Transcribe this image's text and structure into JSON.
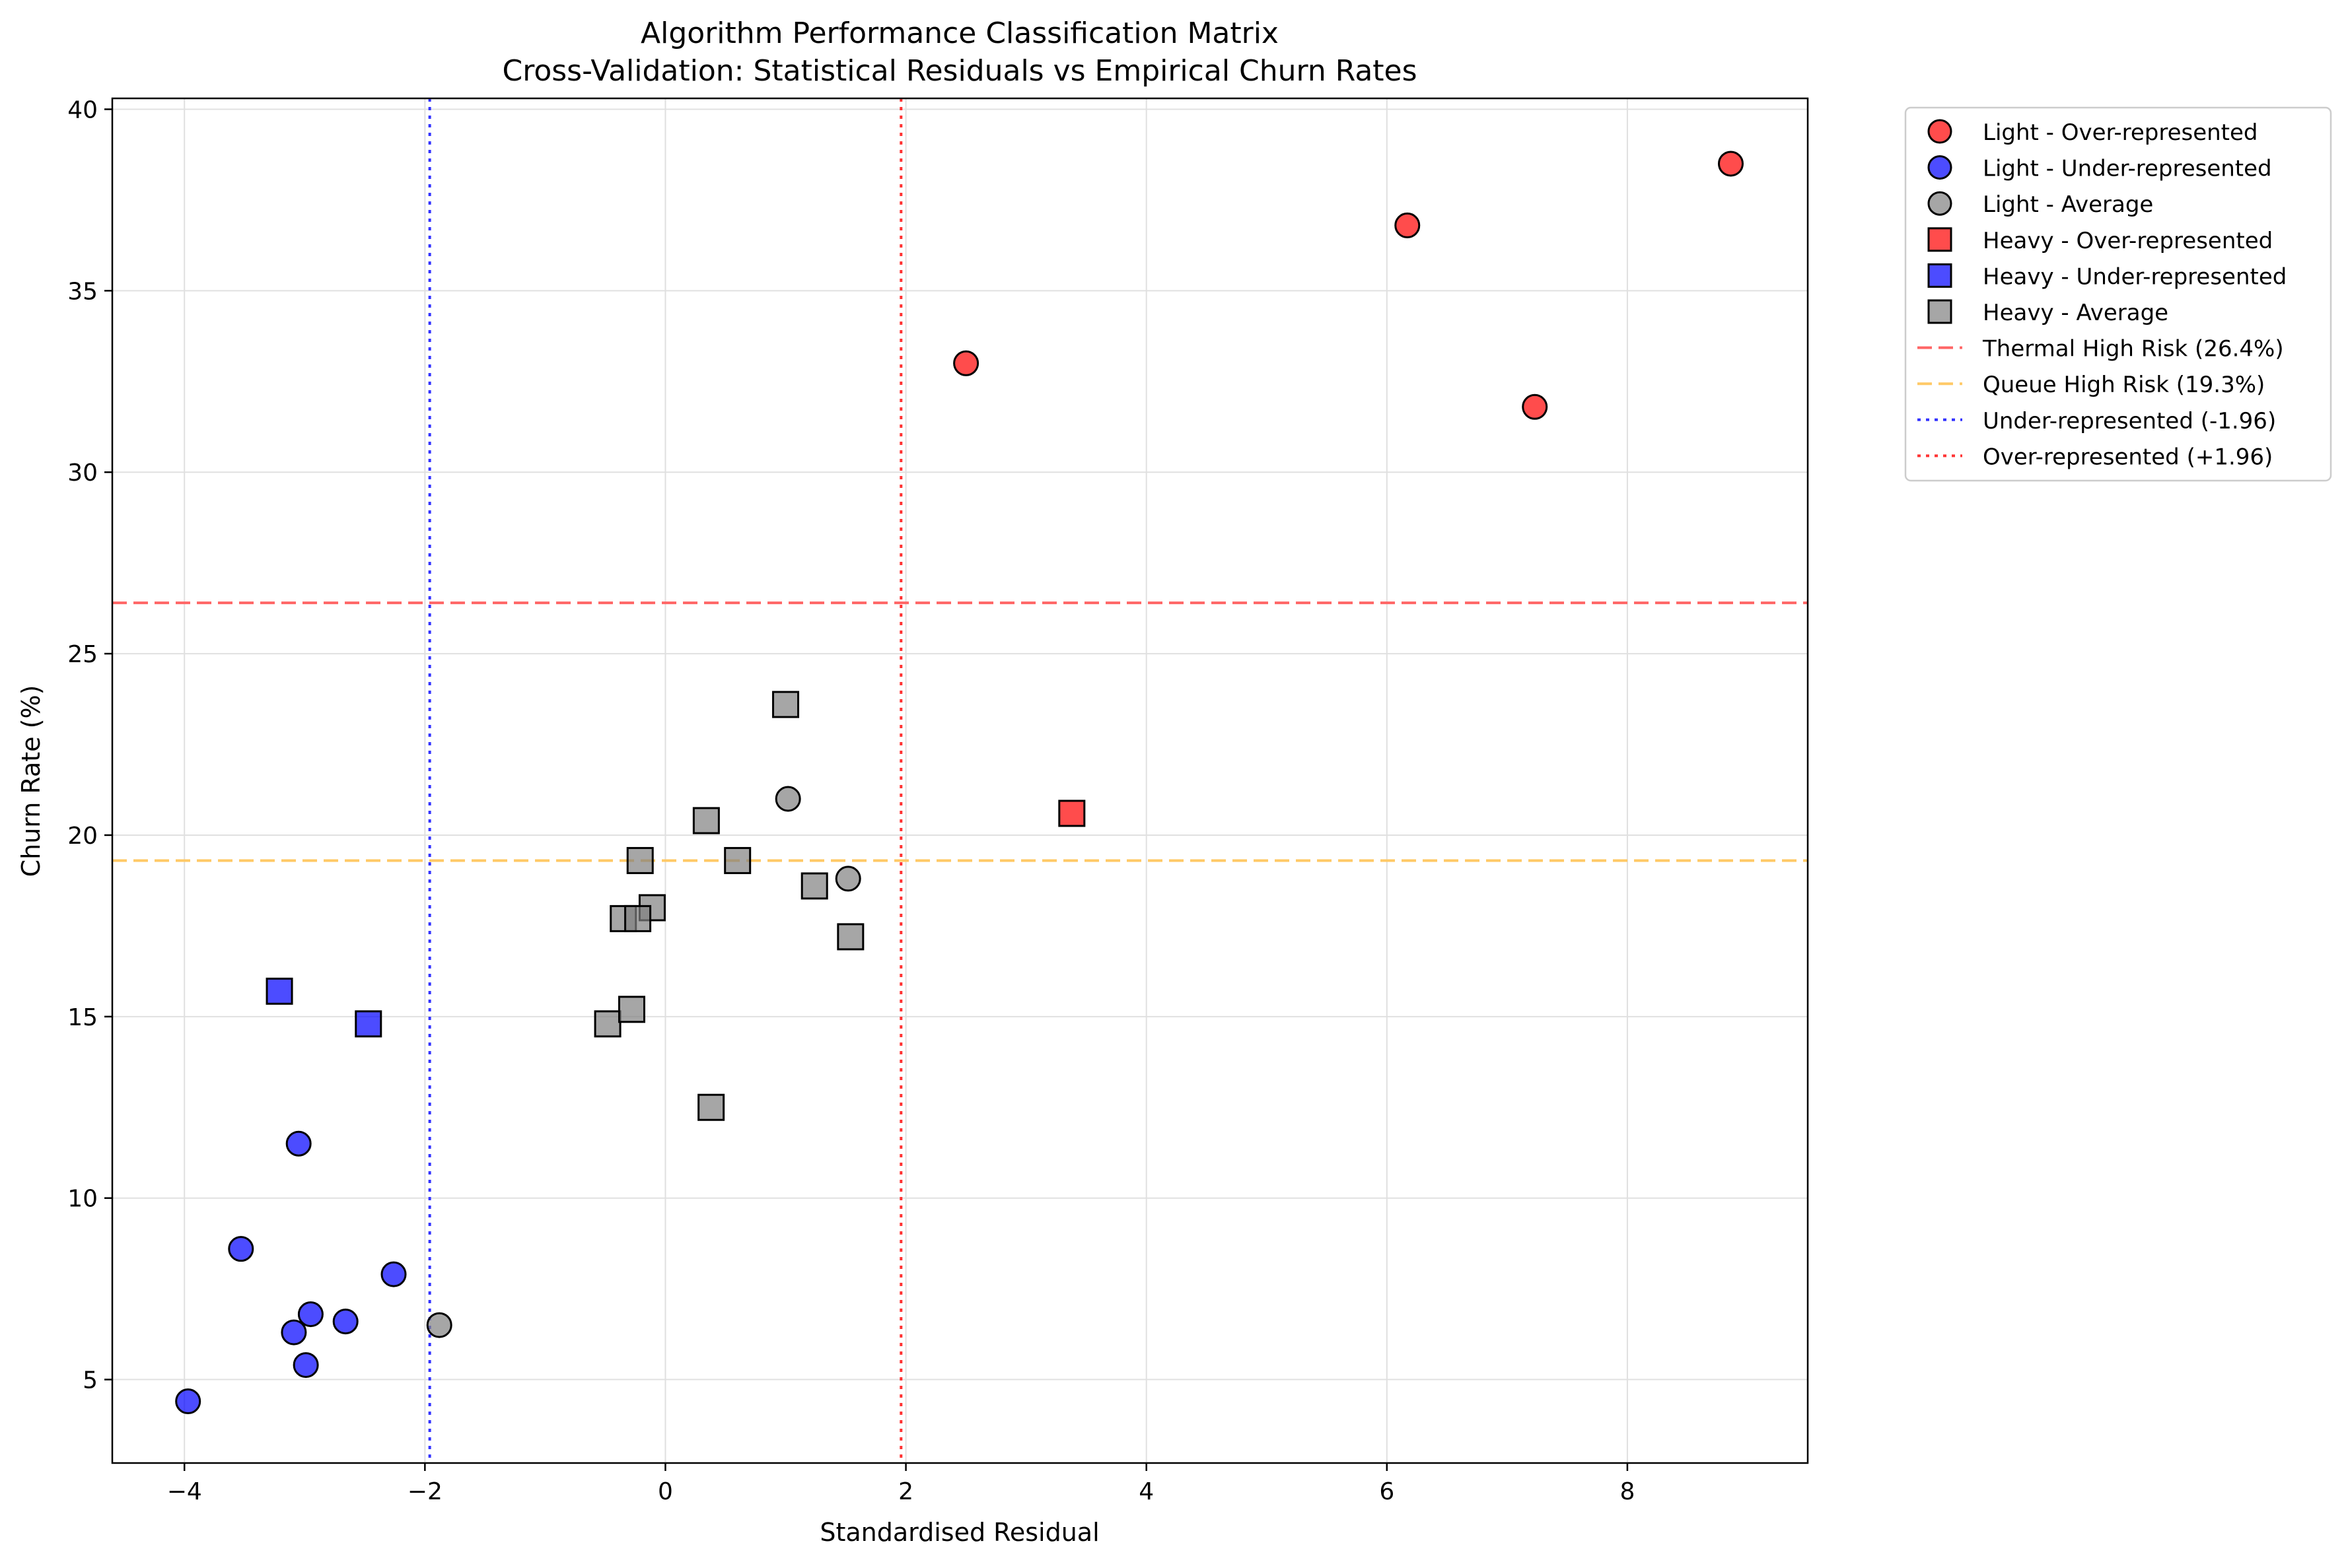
{
  "chart_data": {
    "type": "scatter",
    "title": "Algorithm Performance Classification Matrix",
    "subtitle": "Cross-Validation: Statistical Residuals vs Empirical Churn Rates",
    "xlabel": "Standardised Residual",
    "ylabel": "Churn Rate (%)",
    "xlim": [
      -4.6,
      9.5
    ],
    "ylim": [
      2.7,
      40.3
    ],
    "xticks": [
      -4,
      -2,
      0,
      2,
      4,
      6,
      8
    ],
    "xtick_labels": [
      "−4",
      "−2",
      "0",
      "2",
      "4",
      "6",
      "8"
    ],
    "yticks": [
      5,
      10,
      15,
      20,
      25,
      30,
      35,
      40
    ],
    "ytick_labels": [
      "5",
      "10",
      "15",
      "20",
      "25",
      "30",
      "35",
      "40"
    ],
    "grid": true,
    "legend_position": "outside-right",
    "series": [
      {
        "name": "Light - Over-represented",
        "marker": "circle",
        "color": "#ff0000",
        "points": [
          [
            2.5,
            33.0
          ],
          [
            6.17,
            36.8
          ],
          [
            7.23,
            31.8
          ],
          [
            8.86,
            38.5
          ]
        ]
      },
      {
        "name": "Light - Under-represented",
        "marker": "circle",
        "color": "#0000ff",
        "points": [
          [
            -3.97,
            4.4
          ],
          [
            -3.53,
            8.6
          ],
          [
            -3.09,
            6.3
          ],
          [
            -3.05,
            11.5
          ],
          [
            -2.95,
            6.8
          ],
          [
            -2.99,
            5.4
          ],
          [
            -2.66,
            6.6
          ],
          [
            -2.26,
            7.9
          ]
        ]
      },
      {
        "name": "Light - Average",
        "marker": "circle",
        "color": "#808080",
        "points": [
          [
            -1.88,
            6.5
          ],
          [
            1.02,
            21.0
          ],
          [
            1.52,
            18.8
          ]
        ]
      },
      {
        "name": "Heavy - Over-represented",
        "marker": "square",
        "color": "#ff0000",
        "points": [
          [
            3.38,
            20.6
          ]
        ]
      },
      {
        "name": "Heavy - Under-represented",
        "marker": "square",
        "color": "#0000ff",
        "points": [
          [
            -3.21,
            15.7
          ],
          [
            -2.47,
            14.8
          ]
        ]
      },
      {
        "name": "Heavy - Average",
        "marker": "square",
        "color": "#808080",
        "points": [
          [
            1.0,
            23.6
          ],
          [
            0.34,
            20.4
          ],
          [
            -0.21,
            19.3
          ],
          [
            0.6,
            19.3
          ],
          [
            -0.11,
            18.0
          ],
          [
            -0.35,
            17.7
          ],
          [
            -0.23,
            17.7
          ],
          [
            1.24,
            18.6
          ],
          [
            1.54,
            17.2
          ],
          [
            -0.48,
            14.8
          ],
          [
            -0.28,
            15.2
          ],
          [
            0.38,
            12.5
          ]
        ]
      }
    ],
    "reference_lines": [
      {
        "name": "Thermal High Risk (26.4%)",
        "orientation": "horizontal",
        "value": 26.4,
        "color": "#ff6666",
        "style": "dashed"
      },
      {
        "name": "Queue High Risk (19.3%)",
        "orientation": "horizontal",
        "value": 19.3,
        "color": "#ffc966",
        "style": "dashed"
      },
      {
        "name": "Under-represented (-1.96)",
        "orientation": "vertical",
        "value": -1.96,
        "color": "#3333ff",
        "style": "dotted"
      },
      {
        "name": "Over-represented (+1.96)",
        "orientation": "vertical",
        "value": 1.96,
        "color": "#ff3333",
        "style": "dotted"
      }
    ]
  }
}
